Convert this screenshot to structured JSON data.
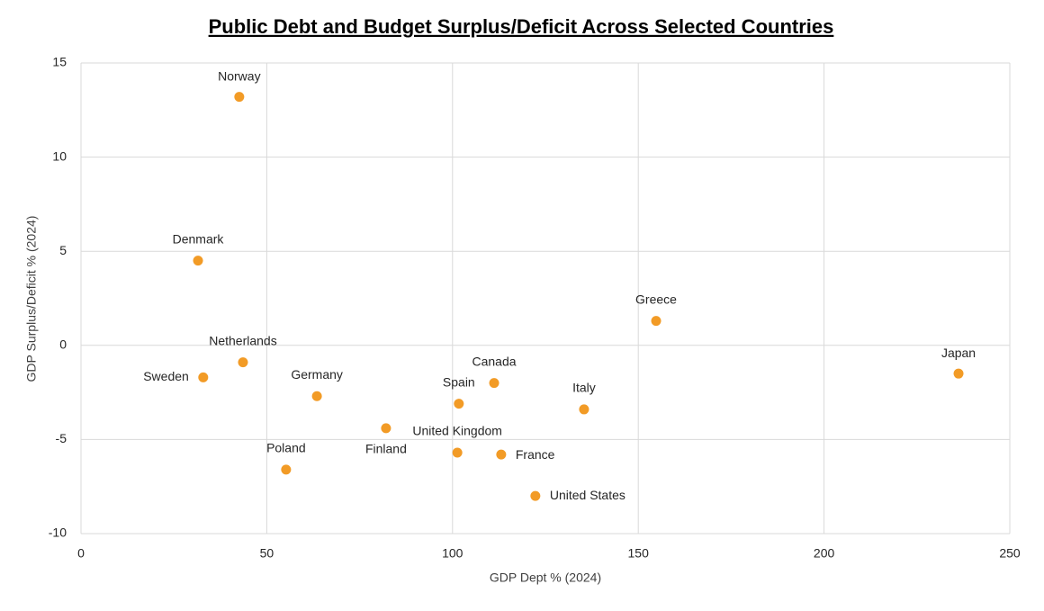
{
  "chart_data": {
    "type": "scatter",
    "title": "Public Debt and Budget Surplus/Deficit Across Selected Countries",
    "xlabel": "GDP Dept % (2024)",
    "ylabel": "GDP Surplus/Deficit % (2024)",
    "color": "#f29b26",
    "labels": [
      "Norway",
      "Denmark",
      "Netherlands",
      "Sweden",
      "Germany",
      "Poland",
      "Finland",
      "United Kingdom",
      "Spain",
      "Canada",
      "France",
      "United States",
      "Italy",
      "Greece",
      "Japan"
    ],
    "x": [
      42.6,
      31.5,
      43.6,
      32.9,
      63.5,
      55.2,
      82.1,
      101.3,
      101.7,
      111.2,
      113.1,
      122.3,
      135.4,
      154.8,
      236.2
    ],
    "values": [
      13.2,
      4.5,
      -0.9,
      -1.7,
      -2.7,
      -6.6,
      -4.4,
      -5.7,
      -3.1,
      -2.0,
      -5.8,
      -8.0,
      -3.4,
      1.3,
      -1.5
    ],
    "xlim": [
      0,
      250
    ],
    "ylim": [
      -10,
      15
    ],
    "xticks": [
      0,
      50,
      100,
      150,
      200,
      250
    ],
    "yticks": [
      -10,
      -5,
      0,
      5,
      10,
      15
    ],
    "grid": true
  }
}
